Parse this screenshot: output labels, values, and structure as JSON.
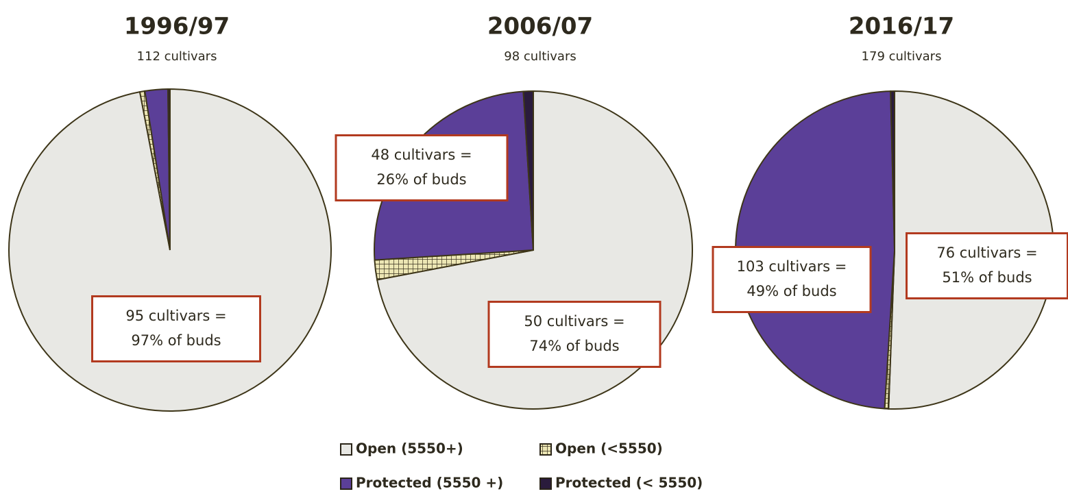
{
  "chart_data": [
    {
      "type": "pie",
      "title": "1996/97",
      "subtitle": "112 cultivars",
      "categories": [
        "Open (5550+)",
        "Open (<5550)",
        "Protected (5550 +)",
        "Protected (< 5550)"
      ],
      "values": [
        97,
        0.5,
        2.3,
        0.2
      ],
      "colors": [
        "#e8e8e4",
        "#ece6b4",
        "#5b3f98",
        "#2a1b3c"
      ],
      "annotations": [
        {
          "lines": [
            "95 cultivars =",
            "97% of buds"
          ]
        }
      ]
    },
    {
      "type": "pie",
      "title": "2006/07",
      "subtitle": "98 cultivars",
      "categories": [
        "Open (5550+)",
        "Open (<5550)",
        "Protected (5550 +)",
        "Protected (< 5550)"
      ],
      "values": [
        72,
        2,
        25,
        1
      ],
      "colors": [
        "#e8e8e4",
        "#ece6b4",
        "#5b3f98",
        "#2a1b3c"
      ],
      "annotations": [
        {
          "lines": [
            "48 cultivars =",
            "26% of buds"
          ]
        },
        {
          "lines": [
            "50 cultivars =",
            "74% of buds"
          ]
        }
      ]
    },
    {
      "type": "pie",
      "title": "2016/17",
      "subtitle": "179 cultivars",
      "categories": [
        "Open (5550+)",
        "Open (<5550)",
        "Protected (5550 +)",
        "Protected (< 5550)"
      ],
      "values": [
        50.6,
        0.4,
        48.6,
        0.4
      ],
      "colors": [
        "#e8e8e4",
        "#ece6b4",
        "#5b3f98",
        "#2a1b3c"
      ],
      "annotations": [
        {
          "lines": [
            "103 cultivars =",
            "49% of buds"
          ]
        },
        {
          "lines": [
            "76 cultivars =",
            "51% of buds"
          ]
        }
      ]
    }
  ]
}
